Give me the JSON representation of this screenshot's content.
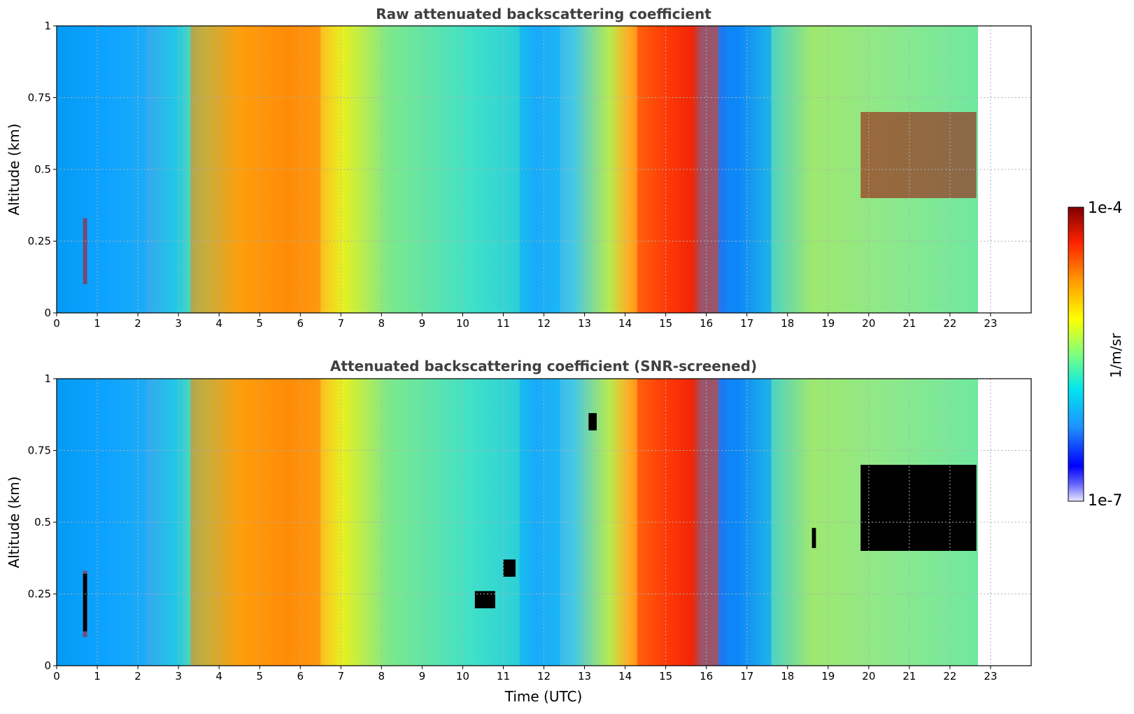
{
  "chart_data": [
    {
      "type": "heatmap",
      "title": "Raw attenuated backscattering coefficient",
      "xlabel": "",
      "ylabel": "Altitude (km)",
      "xlim": [
        0,
        24
      ],
      "ylim": [
        0,
        1
      ],
      "x_ticks": [
        "0",
        "1",
        "2",
        "3",
        "4",
        "5",
        "6",
        "7",
        "8",
        "9",
        "10",
        "11",
        "12",
        "13",
        "14",
        "15",
        "16",
        "17",
        "18",
        "19",
        "20",
        "21",
        "22",
        "23"
      ],
      "y_ticks": [
        "0",
        "0.25",
        "0.5",
        "0.75",
        "1"
      ],
      "data_end_hour": 22.65,
      "grid": true,
      "colorscale": "jet",
      "features": [
        {
          "label": "low backscatter column",
          "t_start": 0.0,
          "t_end": 2.2,
          "alt_start": 0.0,
          "alt_end": 1.0,
          "level": 0.3
        },
        {
          "label": "thin cloud streak",
          "t_start": 0.65,
          "t_end": 0.75,
          "alt_start": 0.1,
          "alt_end": 0.33,
          "level": 0.92
        },
        {
          "label": "high backscatter aerosol layer",
          "t_start": 3.3,
          "t_end": 6.5,
          "alt_start": 0.0,
          "alt_end": 1.0,
          "level": 0.75
        },
        {
          "label": "low backscatter band",
          "t_start": 11.4,
          "t_end": 12.4,
          "alt_start": 0.0,
          "alt_end": 1.0,
          "level": 0.3
        },
        {
          "label": "high backscatter plume",
          "t_start": 14.3,
          "t_end": 16.3,
          "alt_start": 0.0,
          "alt_end": 1.0,
          "level": 0.82
        },
        {
          "label": "low backscatter band",
          "t_start": 16.5,
          "t_end": 17.6,
          "alt_start": 0.0,
          "alt_end": 1.0,
          "level": 0.27
        },
        {
          "label": "cloud layer",
          "t_start": 19.8,
          "t_end": 22.65,
          "alt_start": 0.4,
          "alt_end": 0.7,
          "level": 0.97
        }
      ]
    },
    {
      "type": "heatmap",
      "title": "Attenuated backscattering coefficient (SNR-screened)",
      "xlabel": "Time (UTC)",
      "ylabel": "Altitude (km)",
      "xlim": [
        0,
        24
      ],
      "ylim": [
        0,
        1
      ],
      "x_ticks": [
        "0",
        "1",
        "2",
        "3",
        "4",
        "5",
        "6",
        "7",
        "8",
        "9",
        "10",
        "11",
        "12",
        "13",
        "14",
        "15",
        "16",
        "17",
        "18",
        "19",
        "20",
        "21",
        "22",
        "23"
      ],
      "y_ticks": [
        "0",
        "0.25",
        "0.5",
        "0.75",
        "1"
      ],
      "data_end_hour": 22.65,
      "grid": true,
      "colorscale": "jet",
      "screened_color": "#000000",
      "screened_regions": [
        {
          "t_start": 0.65,
          "t_end": 0.75,
          "alt_start": 0.12,
          "alt_end": 0.32
        },
        {
          "t_start": 10.3,
          "t_end": 10.8,
          "alt_start": 0.2,
          "alt_end": 0.26
        },
        {
          "t_start": 11.0,
          "t_end": 11.3,
          "alt_start": 0.31,
          "alt_end": 0.37
        },
        {
          "t_start": 13.1,
          "t_end": 13.3,
          "alt_start": 0.82,
          "alt_end": 0.88
        },
        {
          "t_start": 18.6,
          "t_end": 18.7,
          "alt_start": 0.41,
          "alt_end": 0.48
        },
        {
          "t_start": 19.8,
          "t_end": 22.65,
          "alt_start": 0.4,
          "alt_end": 0.7
        }
      ]
    }
  ],
  "colorbar": {
    "max_label": "1e-4",
    "min_label": "1e-7",
    "unit_label": "1/m/sr"
  }
}
